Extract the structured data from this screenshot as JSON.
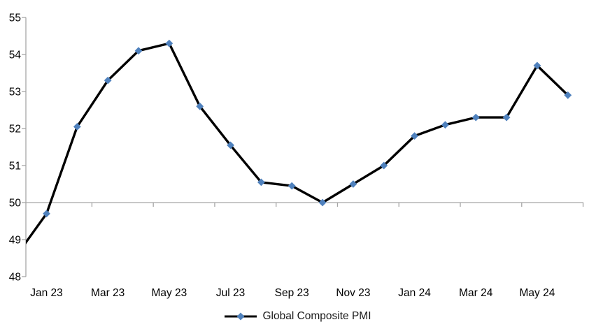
{
  "chart_data": {
    "type": "line",
    "title": "",
    "categories": [
      "Dec 22",
      "Jan 23",
      "Feb 23",
      "Mar 23",
      "Apr 23",
      "May 23",
      "Jun 23",
      "Jul 23",
      "Aug 23",
      "Sep 23",
      "Oct 23",
      "Nov 23",
      "Dec 23",
      "Jan 24",
      "Feb 24",
      "Mar 24",
      "Apr 24",
      "May 24",
      "Jun 24"
    ],
    "series": [
      {
        "name": "Global Composite PMI",
        "values": [
          48.55,
          49.7,
          52.05,
          53.3,
          54.1,
          54.3,
          52.6,
          51.55,
          50.55,
          50.45,
          50.0,
          50.5,
          51.0,
          51.8,
          52.1,
          52.3,
          52.3,
          53.7,
          52.9
        ]
      }
    ],
    "note": "First point (Dec 22) lies left of the plot edge; only its line segment is visible, marker clipped",
    "x_tick_labels": [
      "Jan 23",
      "Mar 23",
      "May 23",
      "Jul 23",
      "Sep 23",
      "Nov 23",
      "Jan 24",
      "Mar 24",
      "May 24"
    ],
    "y_tick_labels": [
      "48",
      "49",
      "50",
      "51",
      "52",
      "53",
      "54",
      "55"
    ],
    "ylim": [
      48,
      55
    ],
    "x_axis_cross_value": 50,
    "grid": "off",
    "legend": {
      "label": "Global Composite PMI",
      "position": "bottom-center"
    },
    "colors": {
      "line": "#000000",
      "marker": "#4f81bd",
      "axis": "#a6a6a6",
      "text": "#000000"
    },
    "marker_shape": "diamond"
  }
}
